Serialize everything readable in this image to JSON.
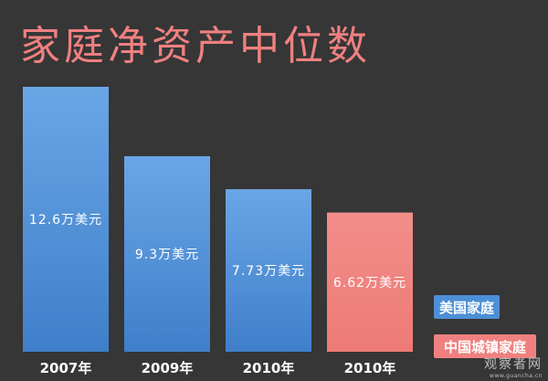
{
  "chart_data": {
    "type": "bar",
    "title": "家庭净资产中位数",
    "categories": [
      "2007年",
      "2009年",
      "2010年",
      "2010年"
    ],
    "values": [
      12.6,
      9.3,
      7.73,
      6.62
    ],
    "value_labels": [
      "12.6万美元",
      "9.3万美元",
      "7.73万美元",
      "6.62万美元"
    ],
    "bar_series": [
      "美国家庭",
      "美国家庭",
      "美国家庭",
      "中国城镇家庭"
    ],
    "legend": [
      {
        "name": "美国家庭",
        "color": "#4d8fd6"
      },
      {
        "name": "中国城镇家庭",
        "color": "#f08080"
      }
    ],
    "legend_position": "right",
    "grid": false,
    "xlabel": "",
    "ylabel": "",
    "ylim": [
      0,
      12.6
    ]
  },
  "watermark": {
    "text": "观察者网",
    "url": "www.guancha.cn"
  }
}
